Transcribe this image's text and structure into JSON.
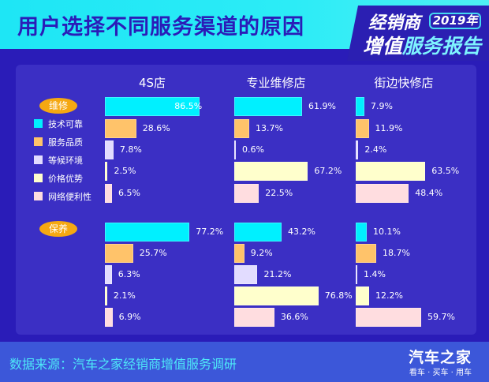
{
  "header": {
    "title": "用户选择不同服务渠道的原因",
    "badge_line1": "经销商",
    "badge_year": "2019年",
    "badge_line2_a": "增值",
    "badge_line2_b": "服务报告"
  },
  "colors": {
    "技术可靠": "#00f0ff",
    "服务品质": "#ffc36a",
    "等候环境": "#e2dcff",
    "价格优势": "#ffffcc",
    "网络便利性": "#ffdde0",
    "pill": "#f5a812",
    "background": "#2a1cb8",
    "header": "#2cecf6"
  },
  "chart_data": {
    "type": "bar",
    "orientation": "horizontal",
    "title": "用户选择不同服务渠道的原因",
    "unit": "%",
    "columns": [
      "4S店",
      "专业维修店",
      "街边快修店"
    ],
    "categories": [
      "技术可靠",
      "服务品质",
      "等候环境",
      "价格优势",
      "网络便利性"
    ],
    "groups": [
      {
        "name": "维修",
        "series": [
          {
            "name": "4S店",
            "values": [
              86.5,
              28.6,
              7.8,
              2.5,
              6.5
            ]
          },
          {
            "name": "专业维修店",
            "values": [
              61.9,
              13.7,
              0.6,
              67.2,
              22.5
            ]
          },
          {
            "name": "街边快修店",
            "values": [
              7.9,
              11.9,
              2.4,
              63.5,
              48.4
            ]
          }
        ]
      },
      {
        "name": "保养",
        "series": [
          {
            "name": "4S店",
            "values": [
              77.2,
              25.7,
              6.3,
              2.1,
              6.9
            ]
          },
          {
            "name": "专业维修店",
            "values": [
              43.2,
              9.2,
              21.2,
              76.8,
              36.6
            ]
          },
          {
            "name": "街边快修店",
            "values": [
              10.1,
              18.7,
              1.4,
              12.2,
              59.7
            ]
          }
        ]
      }
    ],
    "legend": [
      "技术可靠",
      "服务品质",
      "等候环境",
      "价格优势",
      "网络便利性"
    ],
    "legend_position": "left",
    "grid": false
  },
  "labels": {
    "col_4s": "4S店",
    "col_pro": "专业维修店",
    "col_quick": "街边快修店",
    "group_repair": "维修",
    "group_upkeep": "保养",
    "legend": [
      "技术可靠",
      "服务品质",
      "等候环境",
      "价格优势",
      "网络便利性"
    ]
  },
  "values_text": {
    "repair": [
      [
        "86.5%",
        "28.6%",
        "7.8%",
        "2.5%",
        "6.5%"
      ],
      [
        "61.9%",
        "13.7%",
        "0.6%",
        "67.2%",
        "22.5%"
      ],
      [
        "7.9%",
        "11.9%",
        "2.4%",
        "63.5%",
        "48.4%"
      ]
    ],
    "upkeep": [
      [
        "77.2%",
        "25.7%",
        "6.3%",
        "2.1%",
        "6.9%"
      ],
      [
        "43.2%",
        "9.2%",
        "21.2%",
        "76.8%",
        "36.6%"
      ],
      [
        "10.1%",
        "18.7%",
        "1.4%",
        "12.2%",
        "59.7%"
      ]
    ]
  },
  "footer": {
    "source": "数据来源：汽车之家经销商增值服务调研",
    "brand": "汽车之家",
    "slogan": "看车 · 买车 · 用车"
  }
}
